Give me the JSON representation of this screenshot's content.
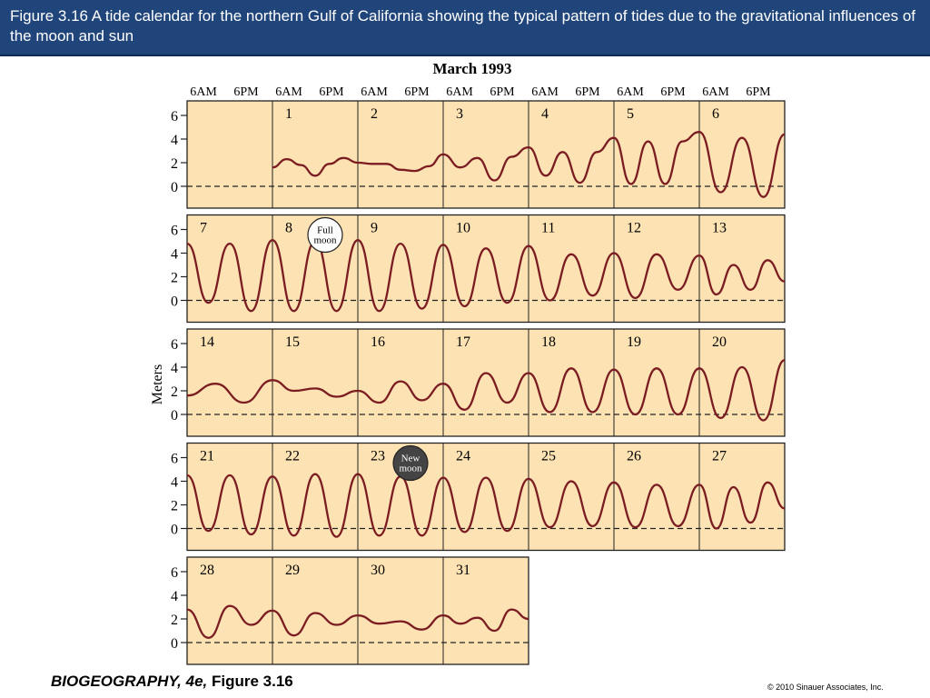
{
  "caption": "Figure 3.16  A tide calendar for the northern Gulf of California showing the typical pattern of tides due to the gravitational influences of the moon and sun",
  "footer": {
    "book": "BIOGEOGRAPHY, 4e,",
    "figure": " Figure 3.16",
    "copyright": "© 2010 Sinauer Associates, Inc."
  },
  "colors": {
    "header_bg": "#20457a",
    "panel_fill": "#fde3b3",
    "tide_line": "#7a1c22",
    "new_moon": "#444444",
    "full_moon": "#ffffff"
  },
  "chart_data": {
    "type": "line",
    "title": "March 1993",
    "ylabel": "Meters",
    "ylim": [
      0,
      7
    ],
    "yticks": [
      0,
      2,
      4,
      6
    ],
    "time_ticks": [
      "6AM",
      "6PM",
      "6AM",
      "6PM",
      "6AM",
      "6PM",
      "6AM",
      "6PM",
      "6AM",
      "6PM",
      "6AM",
      "6PM",
      "6AM",
      "6PM"
    ],
    "grid": false,
    "moon_phases": [
      {
        "day": 8,
        "label_lines": [
          "Full",
          "moon"
        ],
        "phase": "full"
      },
      {
        "day": 23,
        "label_lines": [
          "New",
          "moon"
        ],
        "phase": "new"
      }
    ],
    "weeks": [
      [
        null,
        1,
        2,
        3,
        4,
        5,
        6
      ],
      [
        7,
        8,
        9,
        10,
        11,
        12,
        13
      ],
      [
        14,
        15,
        16,
        17,
        18,
        19,
        20
      ],
      [
        21,
        22,
        23,
        24,
        25,
        26,
        27
      ],
      [
        28,
        29,
        30,
        31
      ]
    ],
    "tide_levels_m": [
      [
        [],
        [
          1.6,
          2.3,
          1.8,
          0.9,
          1.9,
          2.4,
          2.0
        ],
        [
          2.0,
          1.9,
          1.9,
          1.4,
          1.3,
          1.7,
          2.7
        ],
        [
          2.7,
          1.6,
          2.4,
          0.5,
          2.5,
          3.3
        ],
        [
          3.3,
          0.9,
          2.9,
          0.3,
          2.9,
          4.1
        ],
        [
          4.1,
          0.2,
          3.8,
          0.2,
          3.8,
          4.6
        ],
        [
          4.6,
          -0.5,
          4.1,
          -0.9,
          4.4
        ]
      ],
      [
        [
          4.8,
          -0.2,
          4.8,
          -0.9,
          5.1
        ],
        [
          5.1,
          -0.9,
          5.0,
          -0.9,
          5.1
        ],
        [
          5.1,
          -0.9,
          4.8,
          -0.7,
          4.7
        ],
        [
          4.7,
          -0.5,
          4.4,
          -0.2,
          4.6
        ],
        [
          4.6,
          0.0,
          3.9,
          0.4,
          4.0
        ],
        [
          4.0,
          0.2,
          3.9,
          0.9,
          3.8
        ],
        [
          3.8,
          0.5,
          3.0,
          0.9,
          3.4,
          1.6
        ]
      ],
      [
        [
          1.6,
          2.6,
          1.0,
          2.9
        ],
        [
          2.9,
          2.0,
          2.2,
          1.5,
          2.0
        ],
        [
          2.0,
          1.0,
          2.8,
          1.2,
          2.6
        ],
        [
          2.6,
          0.4,
          3.5,
          1.0,
          3.5
        ],
        [
          3.5,
          0.2,
          3.9,
          0.2,
          3.8
        ],
        [
          3.8,
          0.0,
          3.9,
          0.0,
          3.9
        ],
        [
          3.9,
          -0.3,
          4.0,
          -0.5,
          4.6
        ]
      ],
      [
        [
          4.5,
          -0.2,
          4.5,
          -0.5,
          4.4
        ],
        [
          4.4,
          -0.6,
          4.6,
          -0.7,
          4.6
        ],
        [
          4.6,
          -0.6,
          4.4,
          -0.6,
          4.3
        ],
        [
          4.3,
          -0.3,
          4.3,
          -0.2,
          4.2
        ],
        [
          4.2,
          0.1,
          4.0,
          0.2,
          3.9
        ],
        [
          3.9,
          0.1,
          3.7,
          0.2,
          3.7
        ],
        [
          3.7,
          0.0,
          3.5,
          0.5,
          3.9,
          1.7
        ]
      ],
      [
        [
          2.8,
          0.4,
          3.1,
          1.5,
          2.7
        ],
        [
          2.7,
          0.6,
          2.5,
          1.5,
          2.3
        ],
        [
          2.3,
          1.6,
          1.8,
          1.1,
          2.3
        ],
        [
          2.3,
          1.6,
          2.1,
          1.0,
          2.8,
          2.0
        ]
      ]
    ]
  }
}
